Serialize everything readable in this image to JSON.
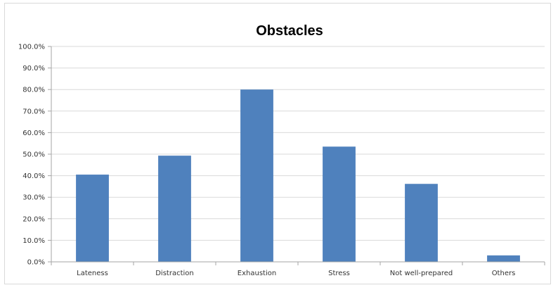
{
  "chart_data": {
    "type": "bar",
    "title": "Obstacles",
    "xlabel": "",
    "ylabel": "",
    "categories": [
      "Lateness",
      "Distraction",
      "Exhaustion",
      "Stress",
      "Not well-prepared",
      "Others"
    ],
    "values": [
      40.5,
      49.3,
      80.0,
      53.5,
      36.2,
      3.0
    ],
    "ylim": [
      0,
      100
    ],
    "yticks": [
      "0.0%",
      "10.0%",
      "20.0%",
      "30.0%",
      "40.0%",
      "50.0%",
      "60.0%",
      "70.0%",
      "80.0%",
      "90.0%",
      "100.0%"
    ],
    "grid": true,
    "legend": "none",
    "colors": {
      "bar": "#4f81bd",
      "grid": "#d9d9d9",
      "axis": "#a6a6a6"
    }
  }
}
